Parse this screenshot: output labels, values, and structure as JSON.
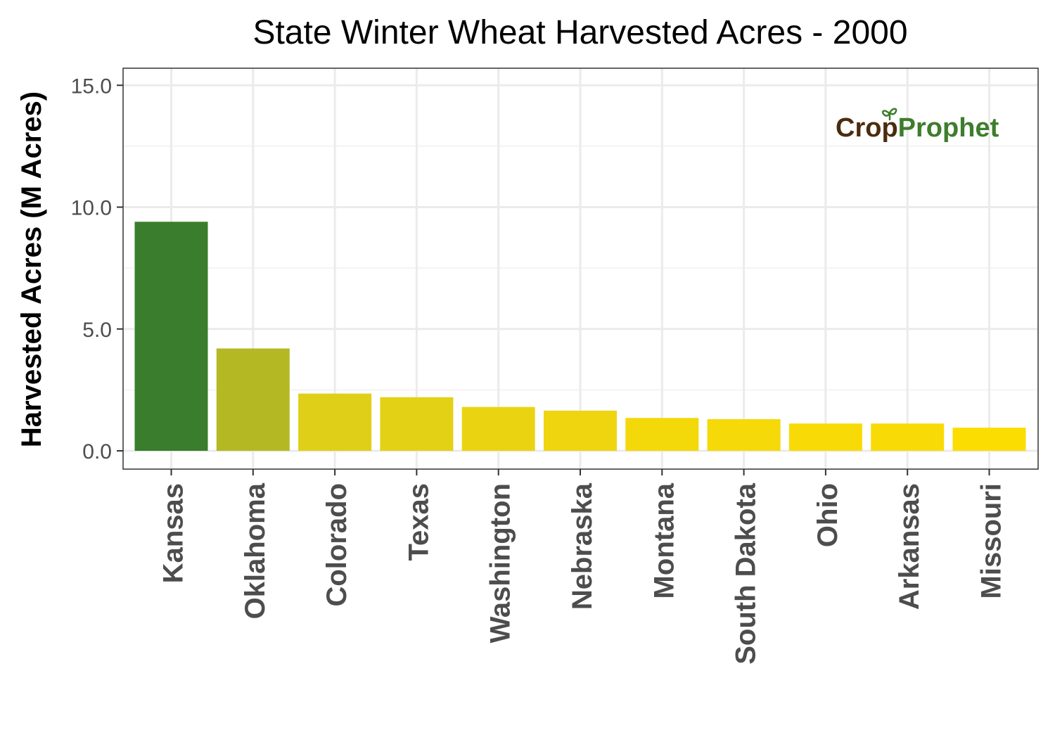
{
  "chart_data": {
    "type": "bar",
    "title": "State Winter Wheat Harvested Acres - 2000",
    "xlabel": "",
    "ylabel": "Harvested Acres (M Acres)",
    "categories": [
      "Kansas",
      "Oklahoma",
      "Colorado",
      "Texas",
      "Washington",
      "Nebraska",
      "Montana",
      "South Dakota",
      "Ohio",
      "Arkansas",
      "Missouri"
    ],
    "values": [
      9.4,
      4.2,
      2.35,
      2.2,
      1.8,
      1.65,
      1.35,
      1.3,
      1.12,
      1.12,
      0.95
    ],
    "bar_colors": [
      "#3a7d2c",
      "#b4b923",
      "#dfcf19",
      "#e3d115",
      "#ead412",
      "#eed510",
      "#f3d80a",
      "#f5d909",
      "#f8db06",
      "#f8db06",
      "#fbdd02"
    ],
    "ylim": [
      -0.75,
      15.7
    ],
    "yticks": [
      0,
      5,
      10,
      15
    ],
    "ytick_labels": [
      "0.0",
      "5.0",
      "10.0",
      "15.0"
    ],
    "grid": true,
    "legend": "none"
  },
  "branding": {
    "logo_text_left": "Cr",
    "logo_text_o": "o",
    "logo_text_p": "p",
    "logo_text_right": "Prophet",
    "logo_brown": "#4a2d0e",
    "logo_green": "#3e7d2c"
  }
}
